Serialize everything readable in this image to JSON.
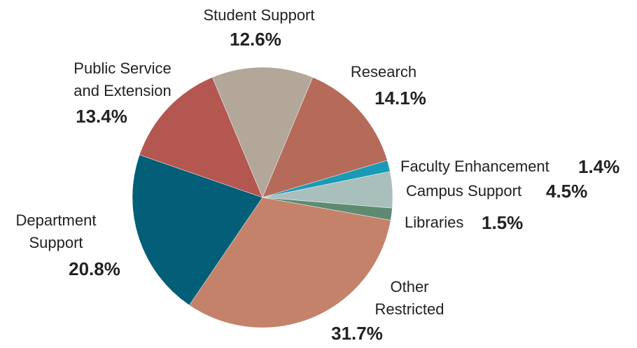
{
  "chart_data": {
    "type": "pie",
    "categories": [
      "Research",
      "Faculty Enhancement",
      "Campus Support",
      "Libraries",
      "Other Restricted",
      "Department Support",
      "Public Service and Extension",
      "Student Support"
    ],
    "values": [
      14.1,
      1.4,
      4.5,
      1.5,
      31.7,
      20.8,
      13.4,
      12.6
    ],
    "value_labels": [
      "14.1%",
      "1.4%",
      "4.5%",
      "1.5%",
      "31.7%",
      "20.8%",
      "13.4%",
      "12.6%"
    ],
    "colors": [
      "#b56a5a",
      "#1a9ab5",
      "#a9bfbb",
      "#5e8a72",
      "#c4826a",
      "#035e77",
      "#b35750",
      "#b2a799"
    ]
  }
}
